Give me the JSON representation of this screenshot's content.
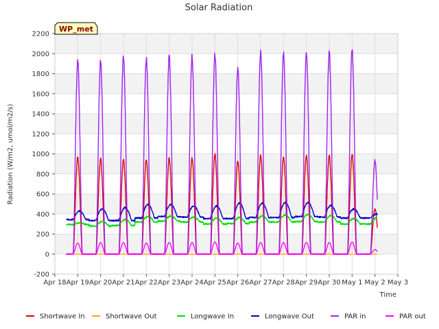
{
  "chart_data": {
    "type": "line",
    "title": "Solar Radiation",
    "xlabel": "Time",
    "ylabel": "Radiation (W/m2, umol/m2/s)",
    "badge": "WP_met",
    "ylim": [
      -200,
      2200
    ],
    "yticks": [
      -200,
      0,
      200,
      400,
      600,
      800,
      1000,
      1200,
      1400,
      1600,
      1800,
      2000,
      2200
    ],
    "xlim_days": [
      0,
      15
    ],
    "xtick_labels": [
      "Apr 18",
      "Apr 19",
      "Apr 20",
      "Apr 21",
      "Apr 22",
      "Apr 23",
      "Apr 24",
      "Apr 25",
      "Apr 26",
      "Apr 27",
      "Apr 28",
      "Apr 29",
      "Apr 30",
      "May 1",
      "May 2",
      "May 3"
    ],
    "grid": true,
    "legend_position": "bottom",
    "series": [
      {
        "name": "Shortwave In",
        "color": "#dd0000",
        "kind": "diurnal",
        "night": 0,
        "daily_peaks": [
          975,
          965,
          960,
          955,
          970,
          975,
          1010,
          940,
          1000,
          985,
          995,
          995,
          1005,
          460
        ]
      },
      {
        "name": "Shortwave Out",
        "color": "#ffa500",
        "kind": "diurnal",
        "night": 0,
        "daily_peaks": [
          0,
          0,
          0,
          0,
          0,
          0,
          0,
          0,
          0,
          0,
          0,
          0,
          0,
          0
        ]
      },
      {
        "name": "Longwave In",
        "color": "#00dd00",
        "kind": "baseline",
        "daily_min": [
          295,
          280,
          285,
          320,
          330,
          320,
          300,
          305,
          320,
          320,
          325,
          320,
          300,
          300
        ],
        "daily_max": [
          310,
          325,
          345,
          375,
          380,
          370,
          360,
          365,
          380,
          390,
          395,
          385,
          355,
          360
        ]
      },
      {
        "name": "Longwave Out",
        "color": "#0000cc",
        "kind": "baseline",
        "daily_min": [
          345,
          335,
          335,
          360,
          375,
          370,
          355,
          355,
          365,
          365,
          375,
          370,
          360,
          360
        ],
        "daily_max": [
          430,
          450,
          465,
          495,
          495,
          480,
          480,
          510,
          510,
          515,
          515,
          485,
          450,
          400
        ]
      },
      {
        "name": "PAR in",
        "color": "#a020f0",
        "kind": "diurnal",
        "night": 0,
        "daily_peaks": [
          1950,
          1960,
          2000,
          1975,
          2005,
          2005,
          2020,
          1870,
          2050,
          2035,
          2035,
          2040,
          2075,
          950
        ]
      },
      {
        "name": "PAR out",
        "color": "#ff00ff",
        "kind": "diurnal",
        "night": 0,
        "daily_peaks": [
          110,
          115,
          115,
          110,
          115,
          115,
          120,
          110,
          115,
          115,
          115,
          115,
          120,
          45
        ]
      }
    ]
  }
}
